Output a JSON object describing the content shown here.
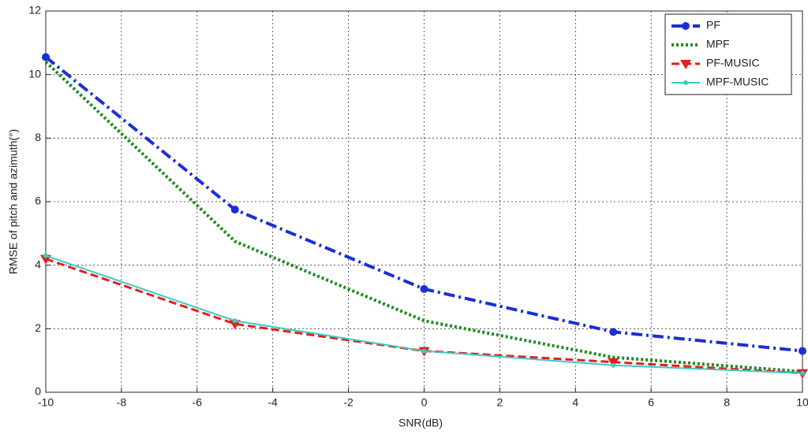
{
  "chart_data": {
    "type": "line",
    "xlabel": "SNR(dB)",
    "ylabel": "RMSE of pitch and azimuth(°)",
    "x": [
      -10,
      -5,
      0,
      5,
      10
    ],
    "xlim": [
      -10,
      10
    ],
    "xticks": [
      -10,
      -8,
      -6,
      -4,
      -2,
      0,
      2,
      4,
      6,
      8,
      10
    ],
    "ylim": [
      0,
      12
    ],
    "yticks": [
      0,
      2,
      4,
      6,
      8,
      10,
      12
    ],
    "grid": true,
    "legend": "upper right",
    "series": [
      {
        "name": "PF",
        "color": "#1a2fd6",
        "line_style": "dash-dot",
        "marker": "circle",
        "values": [
          10.55,
          5.75,
          3.25,
          1.9,
          1.3
        ]
      },
      {
        "name": "MPF",
        "color": "#1e8a1e",
        "line_style": "dotted",
        "marker": "none",
        "values": [
          10.4,
          4.75,
          2.25,
          1.1,
          0.65
        ]
      },
      {
        "name": "PF-MUSIC",
        "color": "#e3201b",
        "line_style": "dashed",
        "marker": "triangle-down",
        "values": [
          4.2,
          2.15,
          1.3,
          0.95,
          0.6
        ]
      },
      {
        "name": "MPF-MUSIC",
        "color": "#3cc8c8",
        "line_style": "solid",
        "marker": "dot",
        "values": [
          4.3,
          2.25,
          1.3,
          0.85,
          0.6
        ]
      }
    ]
  }
}
